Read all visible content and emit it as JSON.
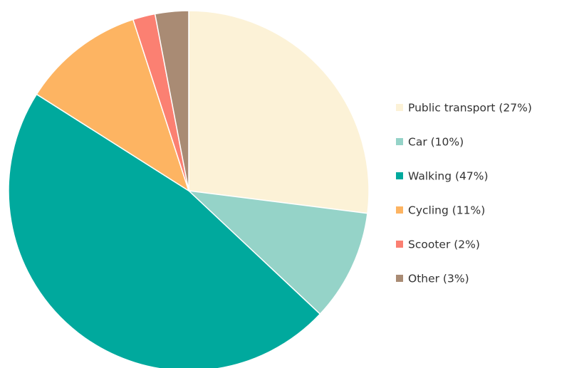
{
  "chart_data": {
    "type": "pie",
    "categories": [
      "Public transport (27%)",
      "Car (10%)",
      "Walking (47%)",
      "Cycling (11%)",
      "Scooter (2%)",
      "Other (3%)"
    ],
    "values": [
      27,
      10,
      47,
      11,
      2,
      3
    ],
    "colors": [
      "#fcf2d7",
      "#95d3c8",
      "#00a99d",
      "#fdb462",
      "#fb8072",
      "#a98b74"
    ],
    "legend": "right"
  }
}
